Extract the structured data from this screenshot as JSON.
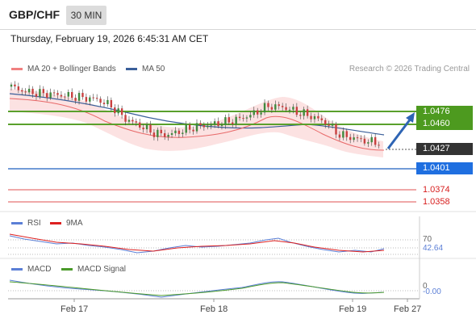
{
  "header": {
    "symbol": "GBP/CHF",
    "timeframe": "30 MIN",
    "timestamp": "Thursday, February 19, 2026 6:45:31 AM CET"
  },
  "legend": {
    "ma20": "MA 20 + Bollinger Bands",
    "ma50": "MA 50",
    "copyright": "Research © 2026 Trading Central"
  },
  "levels": {
    "resistance_1": "1.0476",
    "resistance_2": "1.0460",
    "last_price": "1.0427",
    "pivot": "1.0401",
    "support_1": "1.0374",
    "support_2": "1.0358"
  },
  "rsi": {
    "label": "RSI",
    "ma_label": "9MA",
    "level": "70",
    "value": "42.64"
  },
  "macd": {
    "label": "MACD",
    "signal_label": "MACD Signal",
    "level": "0",
    "value": "-0.00"
  },
  "xaxis": [
    "Feb 17",
    "Feb 18",
    "Feb 19",
    "Feb 27"
  ],
  "colors": {
    "ma20": "#f08080",
    "ma50": "#3a5f9a",
    "resistance": "#5aa02c",
    "pivot": "#1f5fbf",
    "support": "#e05050",
    "last": "#333333",
    "arrow": "#2e64b4",
    "rsi_line": "#5b7fd6",
    "rsi_ma": "#dd2020",
    "macd_line": "#5b7fd6",
    "macd_signal": "#4a9a2a"
  },
  "chart_data": {
    "type": "candlestick",
    "instrument": "GBP/CHF",
    "interval": "30 MIN",
    "x_ticks": [
      "Feb 17",
      "Feb 18",
      "Feb 19",
      "Feb 27"
    ],
    "price_close_approx": [
      1.0493,
      1.0487,
      1.0485,
      1.0484,
      1.0482,
      1.048,
      1.0478,
      1.047,
      1.0455,
      1.0447,
      1.0438,
      1.0436,
      1.0441,
      1.0446,
      1.0448,
      1.0451,
      1.0455,
      1.0461,
      1.047,
      1.0469,
      1.0463,
      1.0458,
      1.0451,
      1.0436,
      1.0432,
      1.0428,
      1.0427
    ],
    "levels": {
      "resistance": [
        1.0476,
        1.046
      ],
      "pivot": 1.0401,
      "support": [
        1.0374,
        1.0358
      ],
      "last": 1.0427
    },
    "rsi": {
      "last": 42.64,
      "overbought": 70
    },
    "macd": {
      "last": -0.0,
      "zero": 0
    }
  }
}
